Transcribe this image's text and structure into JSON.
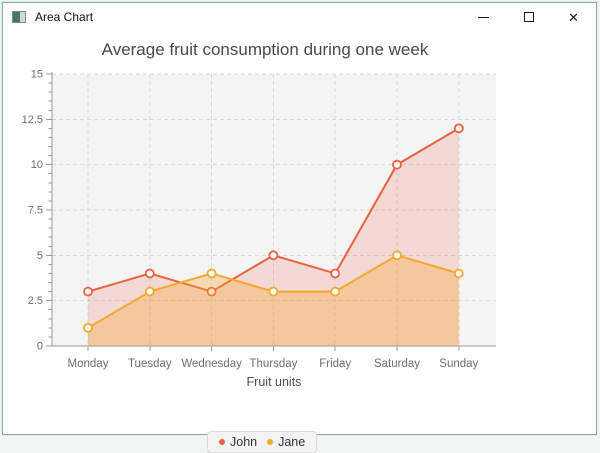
{
  "window": {
    "title": "Area Chart",
    "controls": {
      "minimize_icon": "─",
      "maximize_icon": "□",
      "close_icon": "✕"
    },
    "border_color": "#8cb09e"
  },
  "chart_data": {
    "type": "area",
    "title": "Average fruit consumption during one week",
    "xlabel": "Fruit units",
    "ylabel": "",
    "categories": [
      "Monday",
      "Tuesday",
      "Wednesday",
      "Thursday",
      "Friday",
      "Saturday",
      "Sunday"
    ],
    "series": [
      {
        "name": "John",
        "values": [
          3,
          4,
          3,
          5,
          4,
          10,
          12
        ],
        "line_color": "#ea6140",
        "fill_color": "rgba(234,97,64,0.18)"
      },
      {
        "name": "Jane",
        "values": [
          1,
          3,
          4,
          3,
          3,
          5,
          4
        ],
        "line_color": "#f5a72e",
        "fill_color": "rgba(245,167,46,0.33)"
      }
    ],
    "ylim": [
      0,
      15
    ],
    "y_ticks": [
      0,
      2.5,
      5,
      7.5,
      10,
      12.5,
      15
    ],
    "y_minor_tick_step": 0.5,
    "grid": true,
    "grid_style": "dashed",
    "legend_position": "bottom",
    "plot_background": "#f4f4f4",
    "grid_color": "#d8d8d8",
    "axis_color": "#9a9a9a",
    "tick_label_color": "#6e6e6e",
    "title_color": "#494949",
    "axis_label_color": "#4d4d4d"
  }
}
